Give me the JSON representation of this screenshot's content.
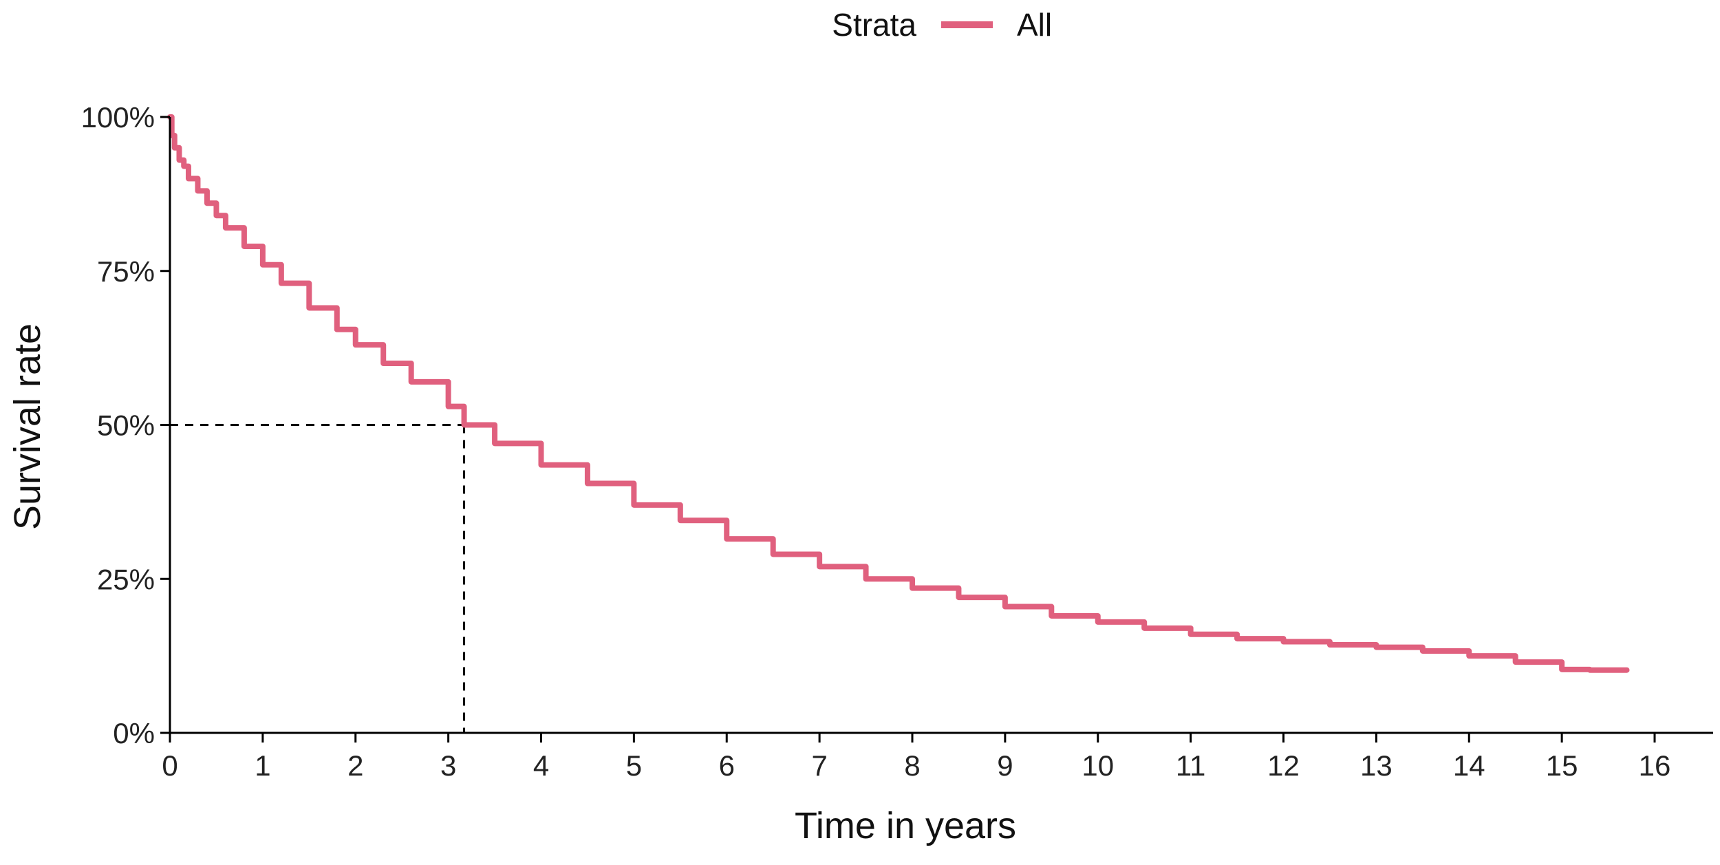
{
  "chart_data": {
    "type": "line",
    "title": "",
    "xlabel": "Time in years",
    "ylabel": "Survival rate",
    "xlim": [
      0,
      16.5
    ],
    "ylim": [
      0,
      1
    ],
    "x_ticks": [
      0,
      1,
      2,
      3,
      4,
      5,
      6,
      7,
      8,
      9,
      10,
      11,
      12,
      13,
      14,
      15,
      16
    ],
    "x_tick_labels": [
      "0",
      "1",
      "2",
      "3",
      "4",
      "5",
      "6",
      "7",
      "8",
      "9",
      "10",
      "11",
      "12",
      "13",
      "14",
      "15",
      "16"
    ],
    "y_ticks": [
      0,
      0.25,
      0.5,
      0.75,
      1
    ],
    "y_tick_labels": [
      "0%",
      "25%",
      "50%",
      "75%",
      "100%"
    ],
    "grid": false,
    "legend": {
      "position": "top",
      "title": "Strata",
      "entries": [
        "All"
      ]
    },
    "series": [
      {
        "name": "All",
        "color": "#e0607e",
        "step": true,
        "x": [
          0,
          0.02,
          0.05,
          0.1,
          0.15,
          0.2,
          0.3,
          0.4,
          0.5,
          0.6,
          0.8,
          1.0,
          1.2,
          1.5,
          1.8,
          2.0,
          2.3,
          2.6,
          3.0,
          3.17,
          3.5,
          4.0,
          4.5,
          5.0,
          5.5,
          6.0,
          6.5,
          7.0,
          7.5,
          8.0,
          8.5,
          9.0,
          9.5,
          10.0,
          10.5,
          11.0,
          11.5,
          12.0,
          12.5,
          13.0,
          13.5,
          14.0,
          14.5,
          15.0,
          15.3,
          15.7
        ],
        "y": [
          1.0,
          0.97,
          0.95,
          0.93,
          0.92,
          0.9,
          0.88,
          0.86,
          0.84,
          0.82,
          0.79,
          0.76,
          0.73,
          0.69,
          0.655,
          0.63,
          0.6,
          0.57,
          0.53,
          0.5,
          0.47,
          0.435,
          0.405,
          0.37,
          0.345,
          0.315,
          0.29,
          0.27,
          0.25,
          0.235,
          0.22,
          0.205,
          0.19,
          0.18,
          0.17,
          0.16,
          0.153,
          0.148,
          0.143,
          0.139,
          0.133,
          0.125,
          0.115,
          0.103,
          0.102,
          0.102
        ]
      }
    ],
    "reference_lines": {
      "median_survival_time": 3.17,
      "survival_level": 0.5,
      "style": "dashed"
    }
  }
}
